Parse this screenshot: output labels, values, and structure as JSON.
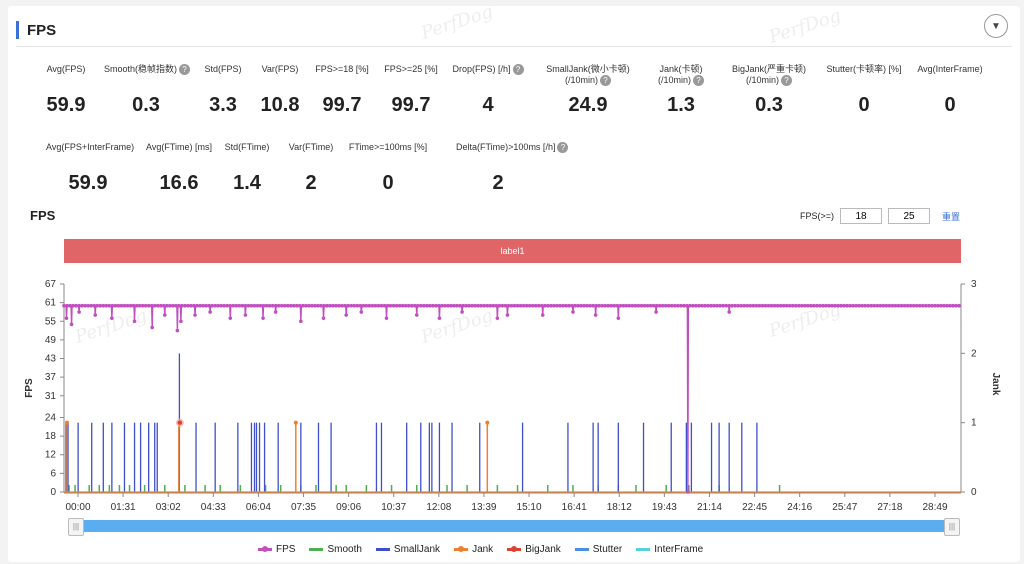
{
  "header": {
    "title": "FPS"
  },
  "metrics_row1": [
    {
      "label": "Avg(FPS)",
      "value": "59.9",
      "help": false
    },
    {
      "label": "Smooth(稳帧指数)",
      "value": "0.3",
      "help": true
    },
    {
      "label": "Std(FPS)",
      "value": "3.3",
      "help": false
    },
    {
      "label": "Var(FPS)",
      "value": "10.8",
      "help": false
    },
    {
      "label": "FPS>=18 [%]",
      "value": "99.7",
      "help": false
    },
    {
      "label": "FPS>=25 [%]",
      "value": "99.7",
      "help": false
    },
    {
      "label": "Drop(FPS) [/h]",
      "value": "4",
      "help": true
    },
    {
      "label": "SmallJank(微小卡顿)",
      "label2": "(/10min)",
      "value": "24.9",
      "help": true
    },
    {
      "label": "Jank(卡顿)",
      "label2": "(/10min)",
      "value": "1.3",
      "help": true
    },
    {
      "label": "BigJank(严重卡顿)",
      "label2": "(/10min)",
      "value": "0.3",
      "help": true
    },
    {
      "label": "Stutter(卡顿率) [%]",
      "value": "0",
      "help": false
    },
    {
      "label": "Avg(InterFrame)",
      "value": "0",
      "help": false
    }
  ],
  "metrics_row2": [
    {
      "label": "Avg(FPS+InterFrame)",
      "value": "59.9",
      "help": false
    },
    {
      "label": "Avg(FTime) [ms]",
      "value": "16.6",
      "help": false
    },
    {
      "label": "Std(FTime)",
      "value": "1.4",
      "help": false
    },
    {
      "label": "Var(FTime)",
      "value": "2",
      "help": false
    },
    {
      "label": "FTime>=100ms [%]",
      "value": "0",
      "help": false
    },
    {
      "label": "Delta(FTime)>100ms [/h]",
      "value": "2",
      "help": true
    }
  ],
  "chart_section": {
    "title": "FPS",
    "fps_threshold_label": "FPS(>=)",
    "fps_threshold_1": "18",
    "fps_threshold_2": "25",
    "reset_label": "重置",
    "label_band": "label1",
    "watermark": "PerfDog"
  },
  "chart_data": {
    "type": "line",
    "title": "FPS",
    "ylabel": "FPS",
    "y2label": "Jank",
    "ylim": [
      0,
      67
    ],
    "y2lim": [
      0,
      3
    ],
    "yticks": [
      "0",
      "6",
      "12",
      "18",
      "24",
      "31",
      "37",
      "43",
      "49",
      "55",
      "61",
      "67"
    ],
    "y2ticks": [
      "0",
      "1",
      "2",
      "3"
    ],
    "xticks": [
      "00:00",
      "01:31",
      "03:02",
      "04:33",
      "06:04",
      "07:35",
      "09:06",
      "10:37",
      "12:08",
      "13:39",
      "15:10",
      "16:41",
      "18:12",
      "19:43",
      "21:14",
      "22:45",
      "24:16",
      "25:47",
      "27:18",
      "28:49"
    ],
    "duration_sec": 1780,
    "fps_baseline": 60,
    "fps_dips": [
      [
        5,
        56
      ],
      [
        15,
        54
      ],
      [
        30,
        58
      ],
      [
        62,
        57
      ],
      [
        95,
        56
      ],
      [
        140,
        55
      ],
      [
        175,
        53
      ],
      [
        200,
        57
      ],
      [
        225,
        52
      ],
      [
        232,
        55
      ],
      [
        260,
        57
      ],
      [
        290,
        58
      ],
      [
        330,
        56
      ],
      [
        360,
        57
      ],
      [
        395,
        56
      ],
      [
        420,
        58
      ],
      [
        470,
        55
      ],
      [
        515,
        56
      ],
      [
        560,
        57
      ],
      [
        590,
        58
      ],
      [
        640,
        56
      ],
      [
        700,
        57
      ],
      [
        745,
        56
      ],
      [
        790,
        58
      ],
      [
        860,
        56
      ],
      [
        880,
        57
      ],
      [
        950,
        57
      ],
      [
        1010,
        58
      ],
      [
        1055,
        57
      ],
      [
        1100,
        56
      ],
      [
        1175,
        58
      ],
      [
        1238,
        0
      ],
      [
        1320,
        58
      ]
    ],
    "series": [
      {
        "name": "FPS",
        "color": "#c050c0"
      },
      {
        "name": "Smooth",
        "color": "#4caf50"
      },
      {
        "name": "SmallJank",
        "color": "#3f4fc8"
      },
      {
        "name": "Jank",
        "color": "#f08030"
      },
      {
        "name": "BigJank",
        "color": "#e04030"
      },
      {
        "name": "Stutter",
        "color": "#4a90e2"
      },
      {
        "name": "InterFrame",
        "color": "#5ad0d8"
      }
    ],
    "smalljank_times": [
      4,
      8,
      28,
      55,
      78,
      95,
      120,
      140,
      152,
      168,
      180,
      185,
      228,
      262,
      300,
      345,
      372,
      378,
      382,
      388,
      398,
      425,
      470,
      505,
      530,
      620,
      630,
      680,
      708,
      725,
      730,
      745,
      770,
      825,
      910,
      1000,
      1050,
      1060,
      1100,
      1150,
      1205,
      1235,
      1245,
      1285,
      1300,
      1320,
      1345,
      1375
    ],
    "smalljank_big": [
      [
        229,
        2
      ]
    ],
    "jank_times": [
      6,
      228,
      460,
      840
    ],
    "bigjank_times": [
      230
    ],
    "smooth_times": [
      10,
      22,
      50,
      70,
      90,
      110,
      130,
      160,
      200,
      240,
      280,
      310,
      350,
      400,
      430,
      470,
      500,
      540,
      560,
      600,
      650,
      700,
      760,
      800,
      860,
      900,
      960,
      1010,
      1060,
      1100,
      1135,
      1195,
      1240,
      1300,
      1420
    ]
  },
  "legend": [
    "FPS",
    "Smooth",
    "SmallJank",
    "Jank",
    "BigJank",
    "Stutter",
    "InterFrame"
  ]
}
